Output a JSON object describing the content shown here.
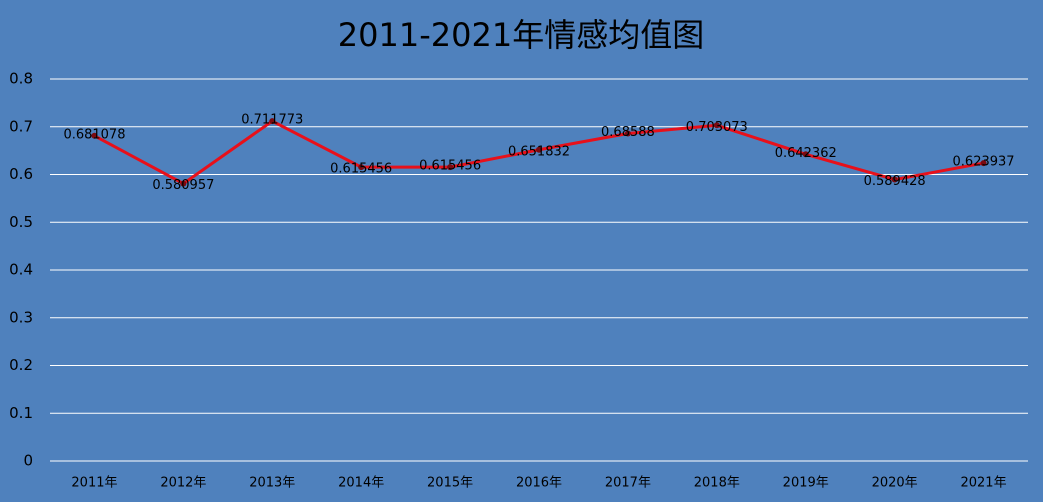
{
  "chart_data": {
    "type": "line",
    "title": "2011-2021年情感均值图",
    "categories": [
      "2011年",
      "2012年",
      "2013年",
      "2014年",
      "2015年",
      "2016年",
      "2017年",
      "2018年",
      "2019年",
      "2020年",
      "2021年"
    ],
    "values": [
      0.681078,
      0.580957,
      0.711773,
      0.615456,
      0.615456,
      0.651832,
      0.68588,
      0.703073,
      0.642362,
      0.589428,
      0.623937
    ],
    "color": "#e8101a",
    "background": "#4f81bd",
    "grid": true,
    "ylim": [
      0,
      0.8
    ],
    "yticks": [
      0,
      0.1,
      0.2,
      0.3,
      0.4,
      0.5,
      0.6,
      0.7,
      0.8
    ]
  }
}
